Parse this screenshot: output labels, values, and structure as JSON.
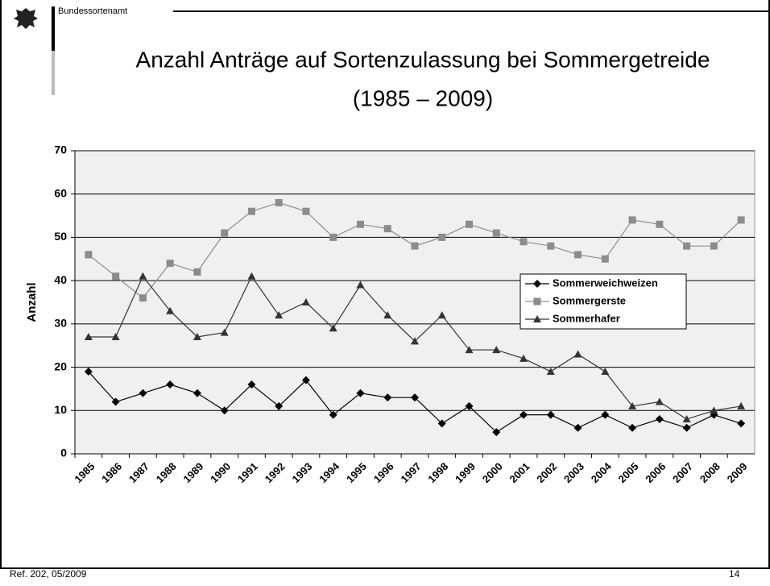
{
  "header": {
    "organization": "Bundessortenamt"
  },
  "chart_data": {
    "type": "line",
    "title": "Anzahl Anträge auf Sortenzulassung bei Sommergetreide",
    "subtitle": "(1985 – 2009)",
    "ylabel": "Anzahl",
    "categories": [
      "1985",
      "1986",
      "1987",
      "1988",
      "1989",
      "1990",
      "1991",
      "1992",
      "1993",
      "1994",
      "1995",
      "1996",
      "1997",
      "1998",
      "1999",
      "2000",
      "2001",
      "2002",
      "2003",
      "2004",
      "2005",
      "2006",
      "2007",
      "2008",
      "2009"
    ],
    "series": [
      {
        "name": "Sommerweichweizen",
        "color": "#000000",
        "marker": "diamond",
        "values": [
          19,
          12,
          14,
          16,
          14,
          10,
          16,
          11,
          17,
          9,
          14,
          13,
          13,
          7,
          11,
          5,
          9,
          9,
          6,
          9,
          6,
          8,
          6,
          9,
          7
        ]
      },
      {
        "name": "Sommergerste",
        "color": "#8c8c8c",
        "marker": "square",
        "values": [
          46,
          41,
          36,
          44,
          42,
          51,
          56,
          58,
          56,
          50,
          53,
          52,
          48,
          50,
          53,
          51,
          49,
          48,
          46,
          45,
          54,
          53,
          48,
          48,
          54
        ]
      },
      {
        "name": "Sommerhafer",
        "color": "#333333",
        "marker": "triangle",
        "values": [
          27,
          27,
          41,
          33,
          27,
          28,
          41,
          32,
          35,
          29,
          39,
          32,
          26,
          32,
          24,
          24,
          22,
          19,
          23,
          19,
          11,
          12,
          8,
          10,
          11
        ]
      }
    ],
    "ylim": [
      0,
      70
    ],
    "yticks": [
      0,
      10,
      20,
      30,
      40,
      50,
      60,
      70
    ],
    "grid": true,
    "legend": "center-right"
  },
  "footer": {
    "reference": "Ref. 202, 05/2009",
    "page": 14
  }
}
